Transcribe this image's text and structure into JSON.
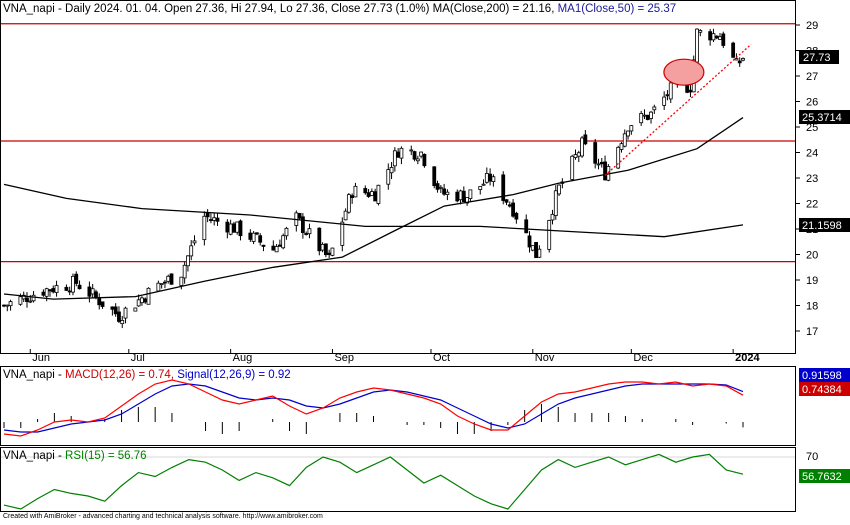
{
  "main_panel": {
    "header_symbol": "VNA_napi",
    "header_text": " - Daily 2024. 01. 04. Open 27.36, Hi 27.94, Lo 27.36, Close 27.73 (1.0%) ",
    "ma200_text": "MA(Close,200) = 21.16,",
    "ma50_text": " MA1(Close,50) = 25.37",
    "y_ticks": [
      "29",
      "28",
      "27",
      "26",
      "25",
      "24",
      "23",
      "22",
      "21",
      "20",
      "19",
      "18",
      "17"
    ],
    "x_months": [
      "Jun",
      "Jul",
      "Aug",
      "Sep",
      "Oct",
      "Nov",
      "Dec",
      "2024"
    ],
    "price_label": "27.73",
    "ma50_label": "25.3714",
    "ma200_label": "21.1598"
  },
  "macd_panel": {
    "header_symbol": "VNA_napi",
    "macd_text": "MACD(12,26) = 0.74,",
    "signal_text": " Signal(12,26,9) = 0.92",
    "signal_label": "0.91598",
    "macd_label": "0.74384"
  },
  "rsi_panel": {
    "header_symbol": "VNA_napi",
    "rsi_text": "RSI(15) = 56.76",
    "tick_70": "70",
    "rsi_label": "56.7632"
  },
  "footer": "Created with AmiBroker - advanced charting and technical analysis software. http://www.amibroker.com",
  "colors": {
    "candle_up": "#ffffff",
    "candle_down": "#000000",
    "hline": "#cc0000",
    "trend": "#ff0000",
    "macd": "#ff0000",
    "signal": "#0000cc",
    "rsi": "#008000",
    "highlight": "#f4a0a0"
  },
  "chart_data": [
    {
      "type": "candlestick",
      "title": "VNA_napi - Daily 2024. 01. 04.",
      "ylim": [
        16.5,
        29.4
      ],
      "x_months": [
        "Jun",
        "Jul",
        "Aug",
        "Sep",
        "Oct",
        "Nov",
        "Dec",
        "2024"
      ],
      "close_points": [
        {
          "date": "2023-05-24",
          "close": 18.0
        },
        {
          "date": "2023-06-05",
          "close": 18.6
        },
        {
          "date": "2023-06-15",
          "close": 18.9
        },
        {
          "date": "2023-06-28",
          "close": 17.6
        },
        {
          "date": "2023-07-10",
          "close": 18.8
        },
        {
          "date": "2023-07-17",
          "close": 19.3
        },
        {
          "date": "2023-07-24",
          "close": 21.5
        },
        {
          "date": "2023-08-03",
          "close": 21.0
        },
        {
          "date": "2023-08-14",
          "close": 20.2
        },
        {
          "date": "2023-08-21",
          "close": 21.4
        },
        {
          "date": "2023-08-31",
          "close": 19.8
        },
        {
          "date": "2023-09-07",
          "close": 22.5
        },
        {
          "date": "2023-09-14",
          "close": 22.4
        },
        {
          "date": "2023-09-21",
          "close": 24.1
        },
        {
          "date": "2023-09-28",
          "close": 24.0
        },
        {
          "date": "2023-10-04",
          "close": 22.4
        },
        {
          "date": "2023-10-12",
          "close": 22.3
        },
        {
          "date": "2023-10-19",
          "close": 23.0
        },
        {
          "date": "2023-10-26",
          "close": 21.8
        },
        {
          "date": "2023-11-02",
          "close": 20.0
        },
        {
          "date": "2023-11-09",
          "close": 22.6
        },
        {
          "date": "2023-11-16",
          "close": 24.3
        },
        {
          "date": "2023-11-23",
          "close": 23.2
        },
        {
          "date": "2023-11-30",
          "close": 25.1
        },
        {
          "date": "2023-12-07",
          "close": 25.5
        },
        {
          "date": "2023-12-14",
          "close": 26.6
        },
        {
          "date": "2023-12-19",
          "close": 26.6
        },
        {
          "date": "2023-12-21",
          "close": 28.7
        },
        {
          "date": "2023-12-28",
          "close": 28.6
        },
        {
          "date": "2024-01-02",
          "close": 27.4
        },
        {
          "date": "2024-01-04",
          "close": 27.73
        }
      ],
      "horizontal_levels": [
        29.05,
        24.45,
        19.72
      ],
      "ma50": [
        {
          "date": "2023-05-24",
          "value": 18.45
        },
        {
          "date": "2023-06-08",
          "value": 18.25
        },
        {
          "date": "2023-07-03",
          "value": 18.35
        },
        {
          "date": "2023-07-24",
          "value": 18.95
        },
        {
          "date": "2023-08-14",
          "value": 19.5
        },
        {
          "date": "2023-09-04",
          "value": 19.9
        },
        {
          "date": "2023-09-21",
          "value": 21.0
        },
        {
          "date": "2023-10-05",
          "value": 21.9
        },
        {
          "date": "2023-10-26",
          "value": 22.35
        },
        {
          "date": "2023-11-09",
          "value": 22.8
        },
        {
          "date": "2023-11-30",
          "value": 23.3
        },
        {
          "date": "2023-12-21",
          "value": 24.15
        },
        {
          "date": "2024-01-04",
          "value": 25.37
        }
      ],
      "ma200": [
        {
          "date": "2023-05-24",
          "value": 22.75
        },
        {
          "date": "2023-06-12",
          "value": 22.2
        },
        {
          "date": "2023-07-05",
          "value": 21.8
        },
        {
          "date": "2023-08-07",
          "value": 21.55
        },
        {
          "date": "2023-09-11",
          "value": 21.1
        },
        {
          "date": "2023-10-16",
          "value": 21.1
        },
        {
          "date": "2023-11-13",
          "value": 20.9
        },
        {
          "date": "2023-12-11",
          "value": 20.7
        },
        {
          "date": "2024-01-04",
          "value": 21.16
        }
      ],
      "trendline_start": {
        "date": "2023-11-23",
        "value": 23.1
      },
      "trendline_end": {
        "date": "2024-01-04",
        "value": 28.2
      }
    },
    {
      "type": "line",
      "title": "MACD(12,26) = 0.74, Signal(12,26,9) = 0.92",
      "series": [
        {
          "name": "MACD(12,26)",
          "last": 0.74
        },
        {
          "name": "Signal(12,26,9)",
          "last": 0.92
        }
      ]
    },
    {
      "type": "line",
      "title": "RSI(15) = 56.76",
      "y_ticks": [
        "70"
      ],
      "series": [
        {
          "name": "RSI(15)",
          "last": 56.76
        }
      ]
    }
  ]
}
